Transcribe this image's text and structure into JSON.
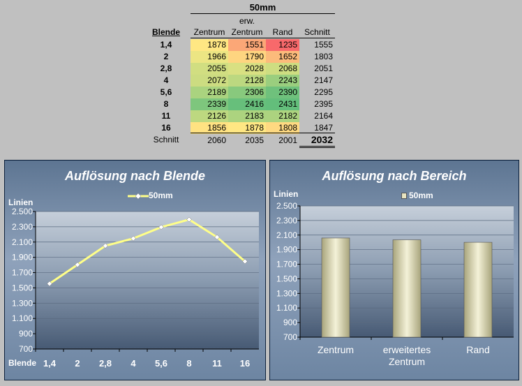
{
  "table": {
    "title": "50mm",
    "header_erw": "erw.",
    "header_blende": "Blende",
    "columns": [
      "Zentrum",
      "Zentrum",
      "Rand",
      "Schnitt"
    ],
    "rows": [
      {
        "blende": "1,4",
        "values": [
          "1878",
          "1551",
          "1235",
          "1555"
        ]
      },
      {
        "blende": "2",
        "values": [
          "1966",
          "1790",
          "1652",
          "1803"
        ]
      },
      {
        "blende": "2,8",
        "values": [
          "2055",
          "2028",
          "2068",
          "2051"
        ]
      },
      {
        "blende": "4",
        "values": [
          "2072",
          "2128",
          "2243",
          "2147"
        ]
      },
      {
        "blende": "5,6",
        "values": [
          "2189",
          "2306",
          "2390",
          "2295"
        ]
      },
      {
        "blende": "8",
        "values": [
          "2339",
          "2416",
          "2431",
          "2395"
        ]
      },
      {
        "blende": "11",
        "values": [
          "2126",
          "2183",
          "2182",
          "2164"
        ]
      },
      {
        "blende": "16",
        "values": [
          "1856",
          "1878",
          "1808",
          "1847"
        ]
      }
    ],
    "footer_label": "Schnitt",
    "footer_values": [
      "2060",
      "2035",
      "2001",
      "2032"
    ]
  },
  "chart_data": [
    {
      "type": "line",
      "title": "Auflösung nach Blende",
      "ylabel": "Linien",
      "xlabel": "Blende",
      "categories": [
        "1,4",
        "2",
        "2,8",
        "4",
        "5,6",
        "8",
        "11",
        "16"
      ],
      "series": [
        {
          "name": "50mm",
          "values": [
            1555,
            1803,
            2051,
            2147,
            2295,
            2395,
            2164,
            1847
          ],
          "color": "#ffff88"
        }
      ],
      "ylim": [
        700,
        2500
      ],
      "yticks": [
        "700",
        "900",
        "1.100",
        "1.300",
        "1.500",
        "1.700",
        "1.900",
        "2.100",
        "2.300",
        "2.500"
      ],
      "legend": "top",
      "grid": true
    },
    {
      "type": "bar",
      "title": "Auflösung nach Bereich",
      "ylabel": "Linien",
      "categories": [
        "Zentrum",
        "erweitertes Zentrum",
        "Rand"
      ],
      "series": [
        {
          "name": "50mm",
          "values": [
            2060,
            2035,
            2001
          ],
          "color": "#d8d4a8"
        }
      ],
      "ylim": [
        700,
        2500
      ],
      "yticks": [
        "700",
        "900",
        "1.100",
        "1.300",
        "1.500",
        "1.700",
        "1.900",
        "2.100",
        "2.300",
        "2.500"
      ],
      "legend": "top",
      "grid": true
    }
  ]
}
